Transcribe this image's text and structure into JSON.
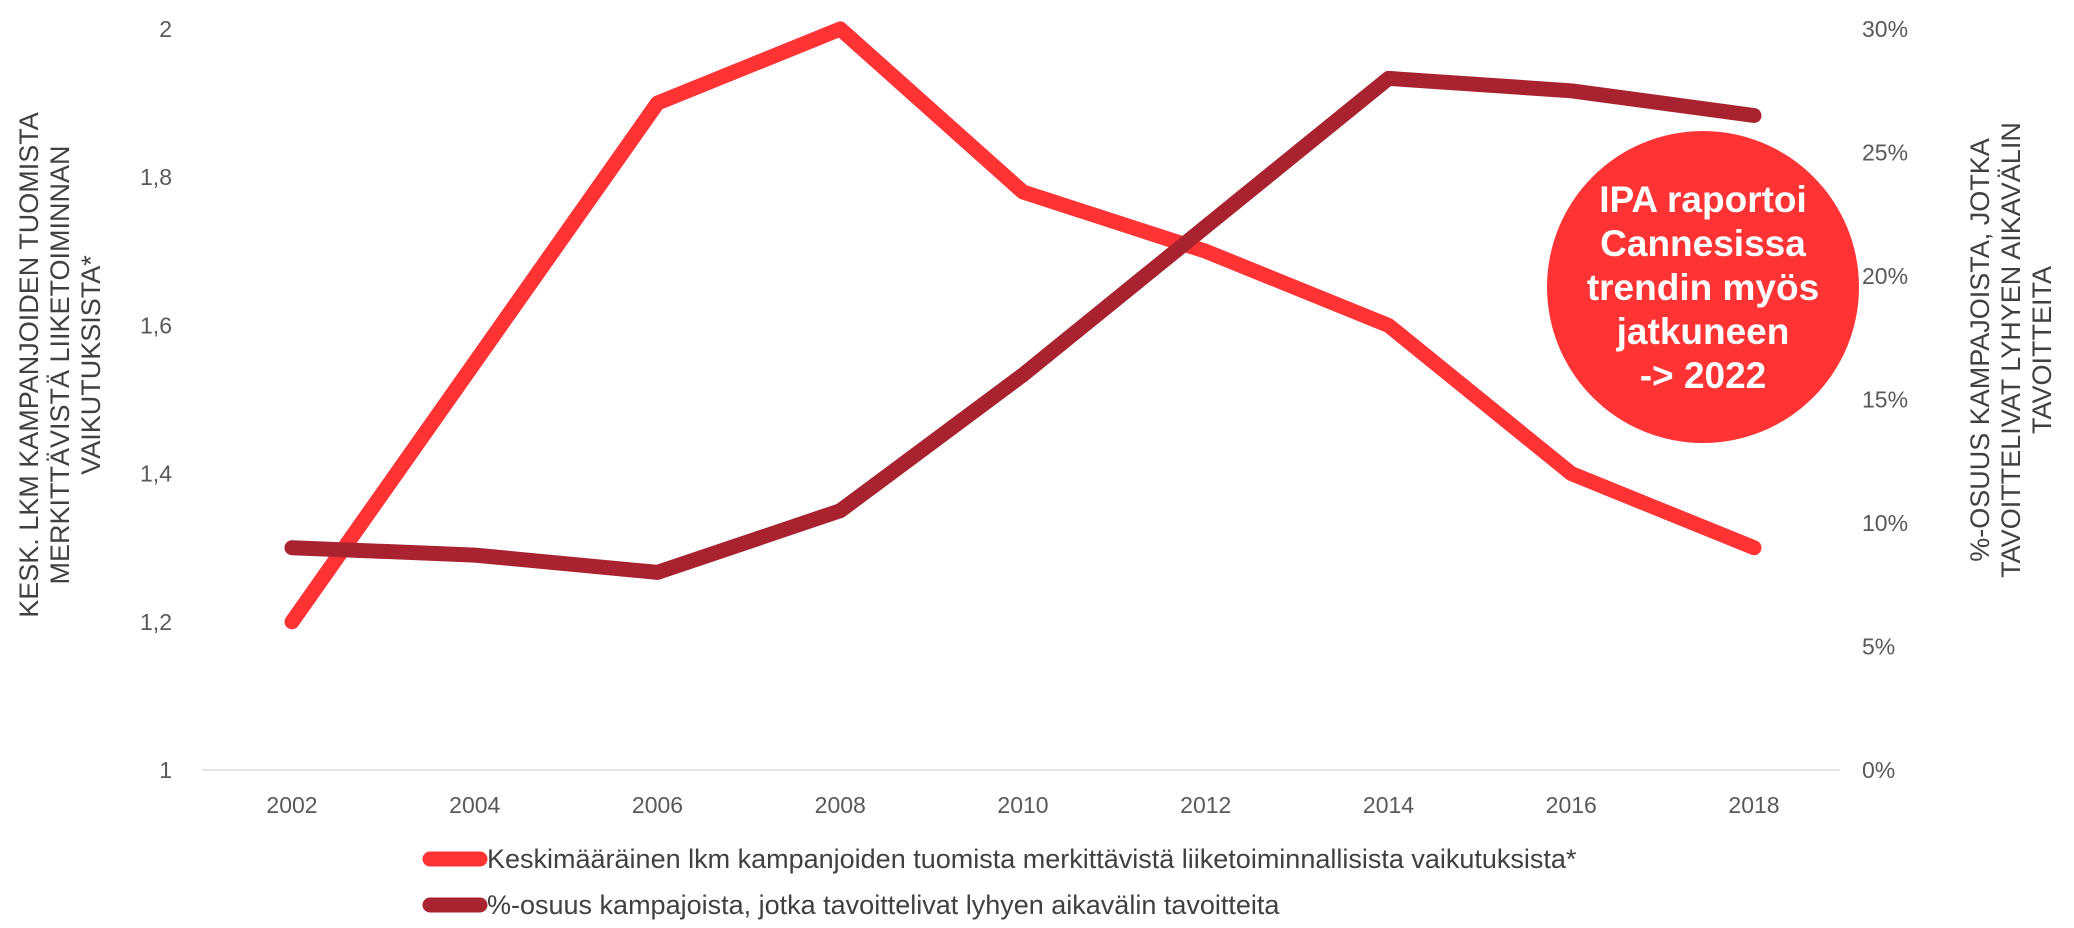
{
  "chart_data": {
    "type": "line",
    "categories": [
      "2002",
      "2004",
      "2006",
      "2008",
      "2010",
      "2012",
      "2014",
      "2016",
      "2018"
    ],
    "series": [
      {
        "name": "Keskimääräinen lkm kampanjoiden tuomista merkittävistä liiketoiminnallisista vaikutuksista*",
        "axis": "left",
        "color": "#ff3333",
        "values": [
          1.2,
          1.55,
          1.9,
          2.0,
          1.78,
          1.7,
          1.6,
          1.4,
          1.3
        ]
      },
      {
        "name": "%-osuus kampajoista, jotka tavoittelivat lyhyen aikavälin tavoitteita",
        "axis": "right",
        "color": "#a8232f",
        "values": [
          9.0,
          8.7,
          8.0,
          10.5,
          16.0,
          22.0,
          28.0,
          27.5,
          26.5
        ]
      }
    ],
    "y_left": {
      "label_lines": [
        "KESK. LKM KAMPANJOIDEN TUOMISTA",
        "MERKITTÄVISTÄ LIIKETOIMINNAN",
        "VAIKUTUKSISTA*"
      ],
      "min": 1,
      "max": 2,
      "ticks": [
        1,
        1.2,
        1.4,
        1.6,
        1.8,
        2
      ],
      "tick_labels": [
        "1",
        "1,2",
        "1,4",
        "1,6",
        "1,8",
        "2"
      ]
    },
    "y_right": {
      "label_lines": [
        "%-OSUUS KAMPAJOISTA, JOTKA",
        "TAVOITTELIVAT LYHYEN AIKAVÄLIN",
        "TAVOITTEITA"
      ],
      "min": 0,
      "max": 30,
      "ticks": [
        0,
        5,
        10,
        15,
        20,
        25,
        30
      ],
      "tick_labels": [
        "0%",
        "5%",
        "10%",
        "15%",
        "20%",
        "25%",
        "30%"
      ]
    },
    "annotation": {
      "lines": [
        "IPA raportoi",
        "Cannesissa",
        "trendin myös",
        "jatkuneen",
        "-> 2022"
      ],
      "color": "#ff3333"
    },
    "legend_position": "bottom",
    "grid": false
  }
}
